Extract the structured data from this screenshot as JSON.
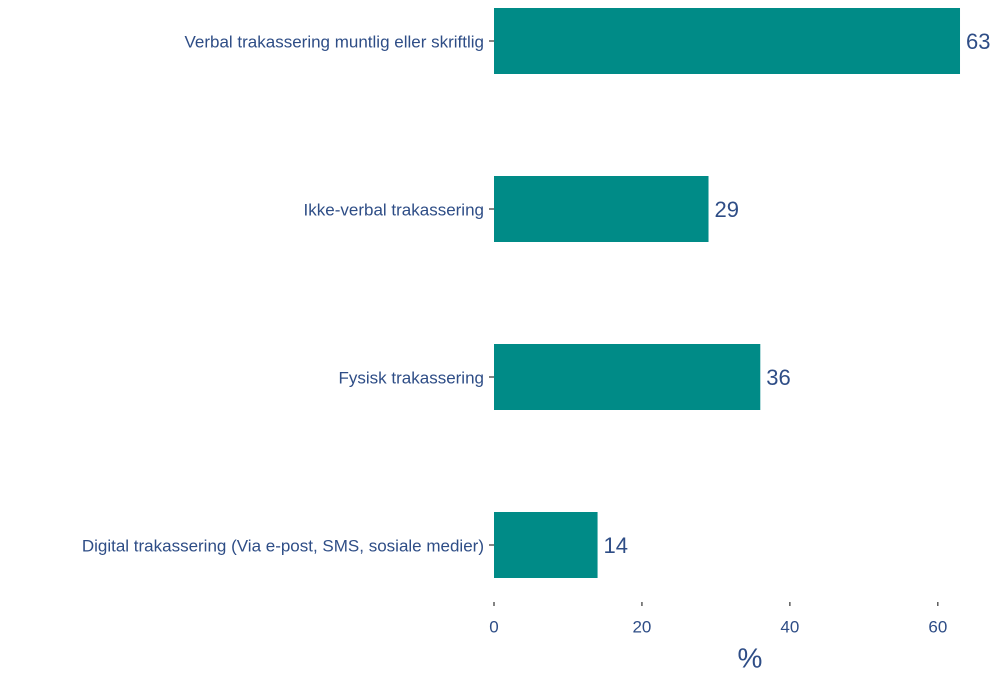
{
  "chart_data": {
    "type": "bar",
    "orientation": "horizontal",
    "categories": [
      "Verbal trakassering muntlig eller skriftlig",
      "Ikke-verbal trakassering",
      "Fysisk trakassering",
      "Digital trakassering (Via e-post, SMS, sosiale medier)"
    ],
    "values": [
      63,
      29,
      36,
      14
    ],
    "color": "#008b87",
    "xlabel": "%",
    "xlim": [
      0,
      68
    ],
    "xticks": [
      0,
      20,
      40,
      60
    ],
    "grid": false
  }
}
